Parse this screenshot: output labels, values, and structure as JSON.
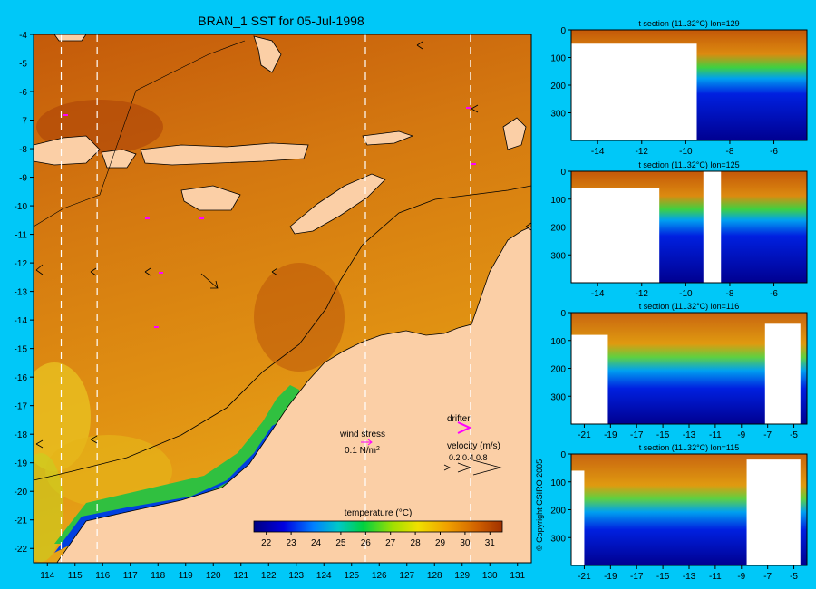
{
  "main_map": {
    "title": "BRAN_1 SST for 05-Jul-1998",
    "lon_ticks": [
      114,
      115,
      116,
      117,
      118,
      119,
      120,
      121,
      122,
      123,
      124,
      125,
      126,
      127,
      128,
      129,
      130,
      131
    ],
    "lat_ticks": [
      -4,
      -5,
      -6,
      -7,
      -8,
      -9,
      -10,
      -11,
      -12,
      -13,
      -14,
      -15,
      -16,
      -17,
      -18,
      -19,
      -20,
      -21,
      -22
    ],
    "section_lines_lon": [
      114.5,
      115.8,
      125.5,
      129.3
    ],
    "wind_stress_label": "wind stress",
    "wind_stress_scale": "0.1 N/m",
    "wind_stress_scale_sup": "2",
    "drifter_label": "drifter",
    "velocity_label": "velocity (m/s)",
    "velocity_values": "0.2 0.4 0.8",
    "colorbar_label": "temperature (°C)",
    "colorbar_ticks": [
      "22",
      "23",
      "24",
      "25",
      "26",
      "27",
      "28",
      "29",
      "30",
      "31"
    ],
    "colors": {
      "land": "#fbcfa6",
      "background": "#00c8f8",
      "drifter": "#ff00ff"
    }
  },
  "copyright": "© Copyright CSIRO 2005",
  "chart_data": [
    {
      "type": "heatmap",
      "title": "BRAN_1 SST for 05-Jul-1998",
      "xlim": [
        113.5,
        131.5
      ],
      "ylim": [
        -22.5,
        -4
      ],
      "colorbar": {
        "label": "temperature (°C)",
        "range": [
          21.5,
          31.5
        ],
        "ticks": [
          22,
          23,
          24,
          25,
          26,
          27,
          28,
          29,
          30,
          31
        ]
      }
    },
    {
      "type": "heatmap",
      "title": "t section (11..32°C) lon=129",
      "x_ticks": [
        "-14",
        "-12",
        "-10",
        "-8",
        "-6"
      ],
      "y_ticks": [
        "0",
        "100",
        "200",
        "300"
      ],
      "xlim": [
        -15.2,
        -4.5
      ],
      "ylim": [
        400,
        0
      ]
    },
    {
      "type": "heatmap",
      "title": "t section (11..32°C) lon=125",
      "x_ticks": [
        "-14",
        "-12",
        "-10",
        "-8",
        "-6"
      ],
      "y_ticks": [
        "0",
        "100",
        "200",
        "300"
      ],
      "xlim": [
        -15.2,
        -4.5
      ],
      "ylim": [
        400,
        0
      ]
    },
    {
      "type": "heatmap",
      "title": "t section (11..32°C) lon=116",
      "x_ticks": [
        "-21",
        "-19",
        "-17",
        "-15",
        "-13",
        "-11",
        "-9",
        "-7",
        "-5"
      ],
      "y_ticks": [
        "0",
        "100",
        "200",
        "300"
      ],
      "xlim": [
        -22,
        -4
      ],
      "ylim": [
        400,
        0
      ]
    },
    {
      "type": "heatmap",
      "title": "t section (11..32°C) lon=115",
      "x_ticks": [
        "-21",
        "-19",
        "-17",
        "-15",
        "-13",
        "-11",
        "-9",
        "-7",
        "-5"
      ],
      "y_ticks": [
        "0",
        "100",
        "200",
        "300"
      ],
      "xlim": [
        -22,
        -4
      ],
      "ylim": [
        400,
        0
      ]
    }
  ]
}
